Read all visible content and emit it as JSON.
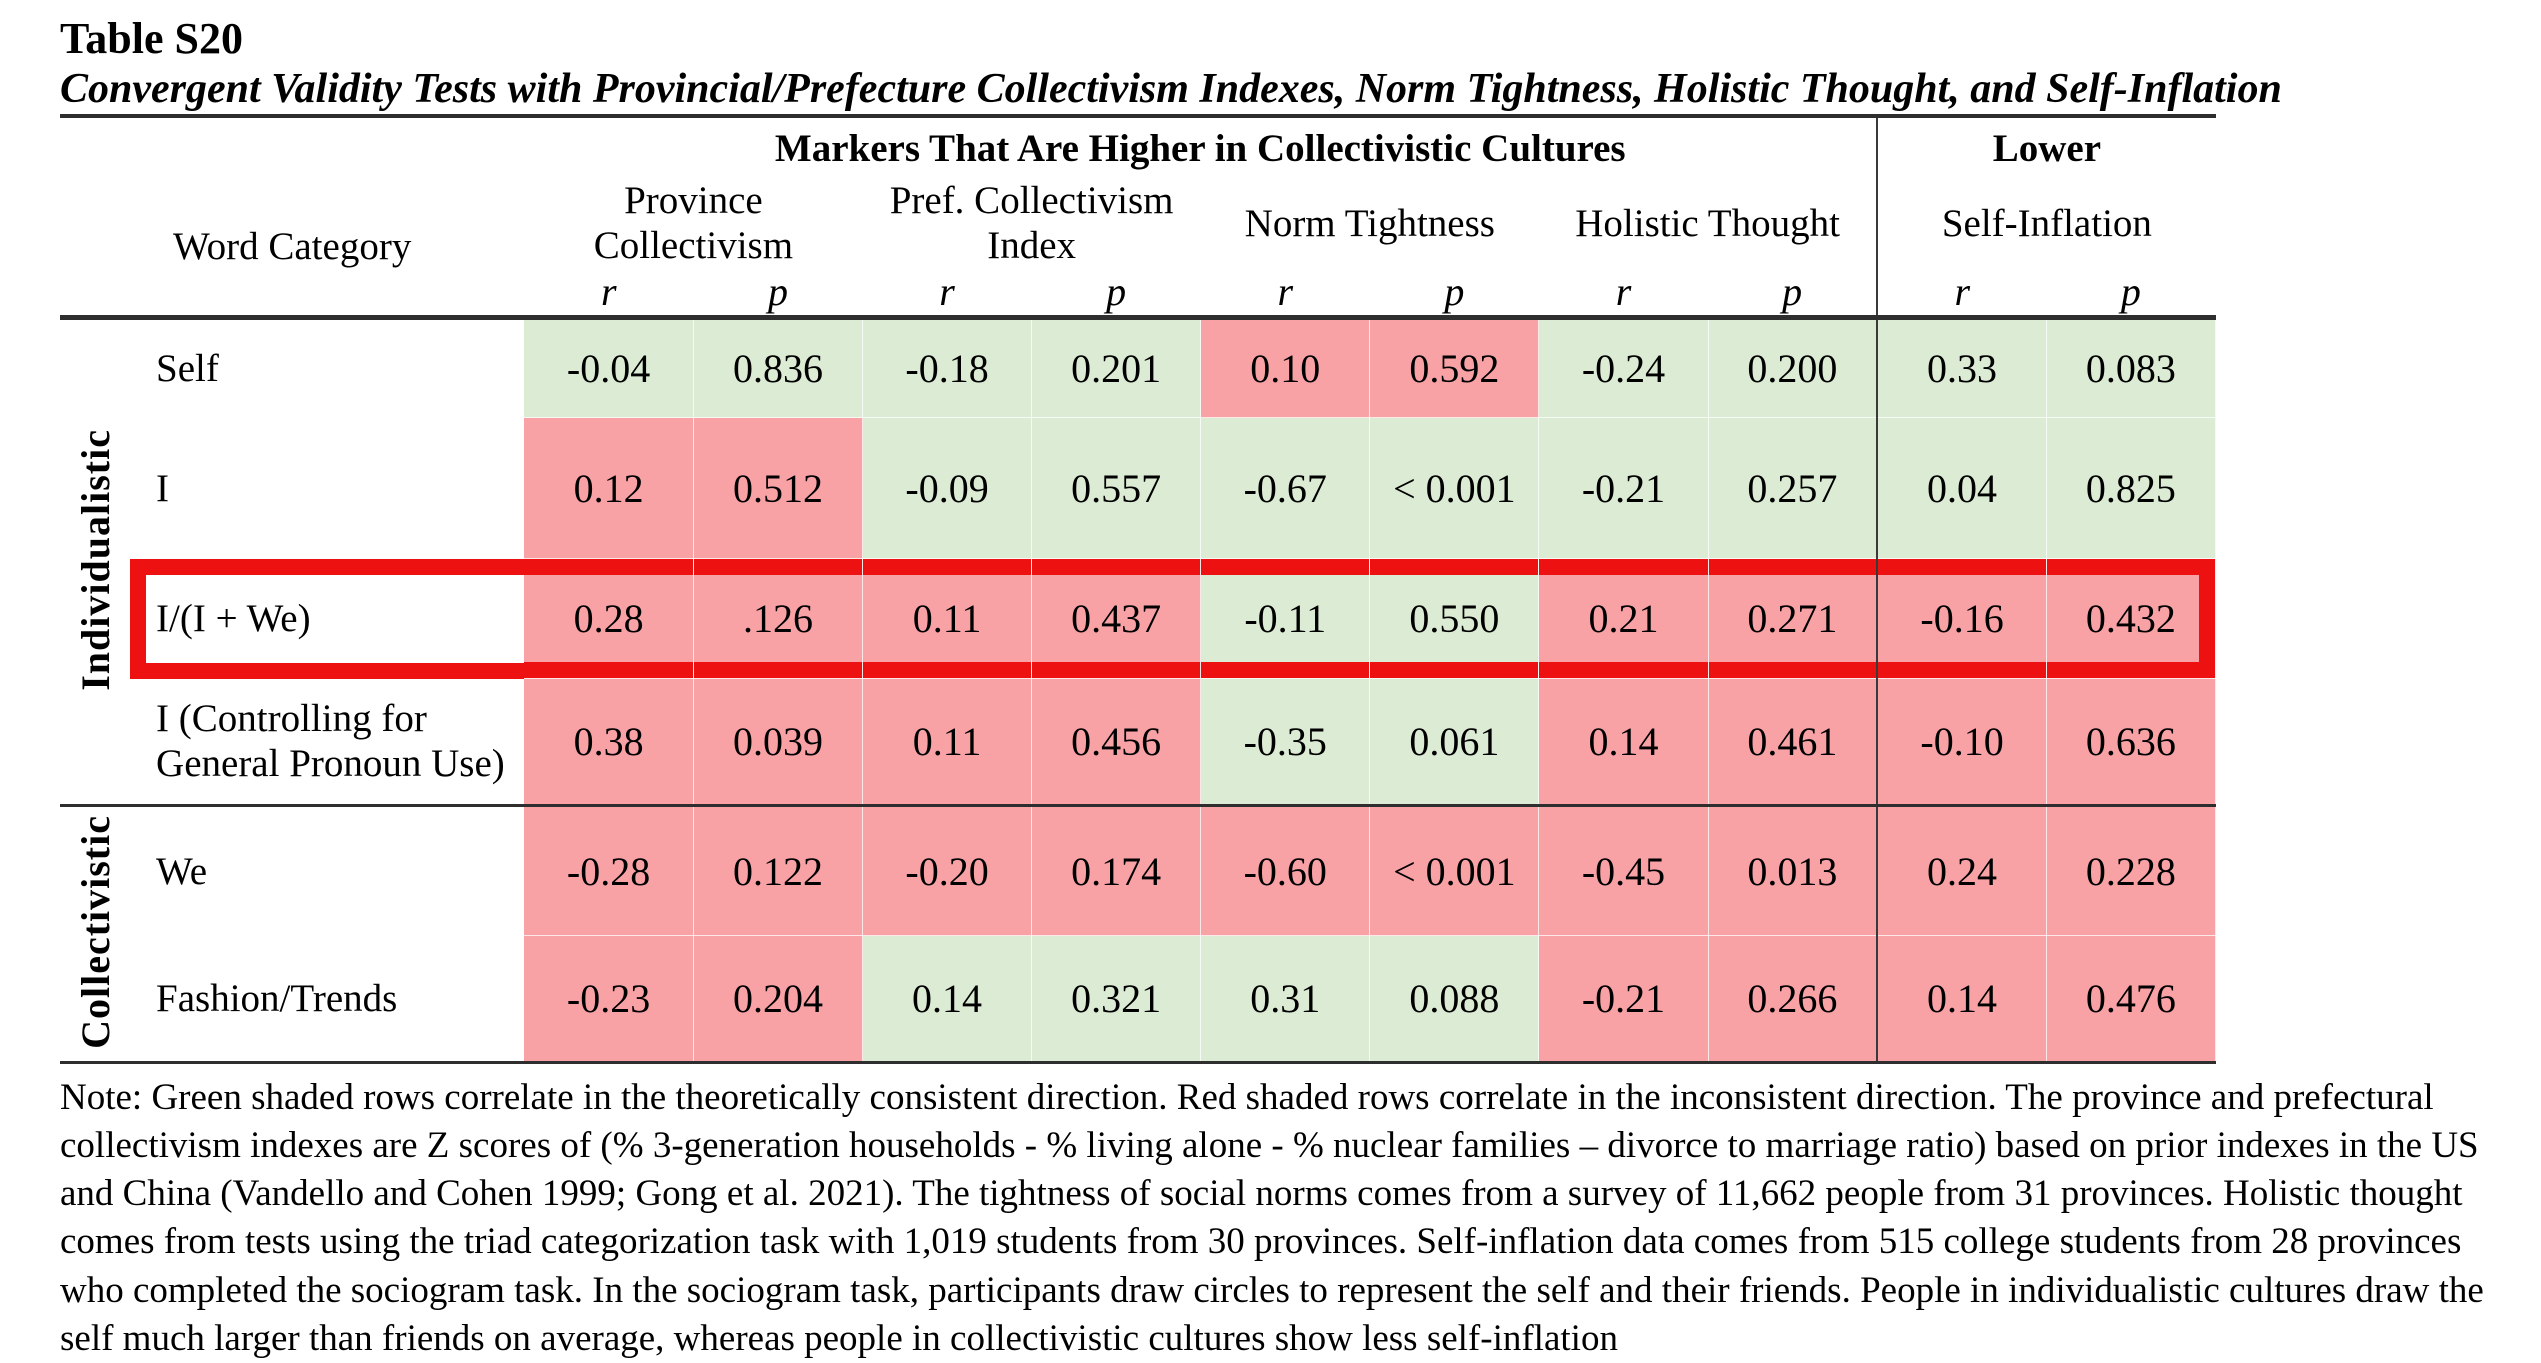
{
  "title": "Table S20",
  "subtitle": "Convergent Validity Tests with Provincial/Prefecture Collectivism Indexes, Norm Tightness, Holistic Thought, and Self-Inflation",
  "colors": {
    "green": "#dcebd3",
    "red": "#f8a2a6",
    "highlight": "#ee1111"
  },
  "table": {
    "markers_header": "Markers That Are Higher in Collectivistic Cultures",
    "lower_header": "Lower",
    "word_category_header": "Word Category",
    "measures": [
      "Province Collectivism",
      "Pref. Collectivism Index",
      "Norm Tightness",
      "Holistic Thought",
      "Self-Inflation"
    ],
    "stat_r": "r",
    "stat_p": "p",
    "groups": [
      {
        "label": "Individualistic",
        "rows": [
          {
            "category": "Self",
            "highlighted": false,
            "cells": [
              {
                "v": "-0.04",
                "c": "green"
              },
              {
                "v": "0.836",
                "c": "green"
              },
              {
                "v": "-0.18",
                "c": "green"
              },
              {
                "v": "0.201",
                "c": "green"
              },
              {
                "v": "0.10",
                "c": "red"
              },
              {
                "v": "0.592",
                "c": "red"
              },
              {
                "v": "-0.24",
                "c": "green"
              },
              {
                "v": "0.200",
                "c": "green"
              },
              {
                "v": "0.33",
                "c": "green"
              },
              {
                "v": "0.083",
                "c": "green"
              }
            ]
          },
          {
            "category": "I",
            "highlighted": false,
            "cells": [
              {
                "v": "0.12",
                "c": "red"
              },
              {
                "v": "0.512",
                "c": "red"
              },
              {
                "v": "-0.09",
                "c": "green"
              },
              {
                "v": "0.557",
                "c": "green"
              },
              {
                "v": "-0.67",
                "c": "green"
              },
              {
                "v": "< 0.001",
                "c": "green"
              },
              {
                "v": "-0.21",
                "c": "green"
              },
              {
                "v": "0.257",
                "c": "green"
              },
              {
                "v": "0.04",
                "c": "green"
              },
              {
                "v": "0.825",
                "c": "green"
              }
            ]
          },
          {
            "category": "I/(I + We)",
            "highlighted": true,
            "cells": [
              {
                "v": "0.28",
                "c": "red"
              },
              {
                "v": ".126",
                "c": "red"
              },
              {
                "v": "0.11",
                "c": "red"
              },
              {
                "v": "0.437",
                "c": "red"
              },
              {
                "v": "-0.11",
                "c": "green"
              },
              {
                "v": "0.550",
                "c": "green"
              },
              {
                "v": "0.21",
                "c": "red"
              },
              {
                "v": "0.271",
                "c": "red"
              },
              {
                "v": "-0.16",
                "c": "red"
              },
              {
                "v": "0.432",
                "c": "red"
              }
            ]
          },
          {
            "category": "I (Controlling for General Pronoun Use)",
            "highlighted": false,
            "cells": [
              {
                "v": "0.38",
                "c": "red"
              },
              {
                "v": "0.039",
                "c": "red"
              },
              {
                "v": "0.11",
                "c": "red"
              },
              {
                "v": "0.456",
                "c": "red"
              },
              {
                "v": "-0.35",
                "c": "green"
              },
              {
                "v": "0.061",
                "c": "green"
              },
              {
                "v": "0.14",
                "c": "red"
              },
              {
                "v": "0.461",
                "c": "red"
              },
              {
                "v": "-0.10",
                "c": "red"
              },
              {
                "v": "0.636",
                "c": "red"
              }
            ]
          }
        ]
      },
      {
        "label": "Collectivistic",
        "rows": [
          {
            "category": "We",
            "highlighted": false,
            "cells": [
              {
                "v": "-0.28",
                "c": "red"
              },
              {
                "v": "0.122",
                "c": "red"
              },
              {
                "v": "-0.20",
                "c": "red"
              },
              {
                "v": "0.174",
                "c": "red"
              },
              {
                "v": "-0.60",
                "c": "red"
              },
              {
                "v": "< 0.001",
                "c": "red"
              },
              {
                "v": "-0.45",
                "c": "red"
              },
              {
                "v": "0.013",
                "c": "red"
              },
              {
                "v": "0.24",
                "c": "red"
              },
              {
                "v": "0.228",
                "c": "red"
              }
            ]
          },
          {
            "category": "Fashion/Trends",
            "highlighted": false,
            "cells": [
              {
                "v": "-0.23",
                "c": "red"
              },
              {
                "v": "0.204",
                "c": "red"
              },
              {
                "v": "0.14",
                "c": "green"
              },
              {
                "v": "0.321",
                "c": "green"
              },
              {
                "v": "0.31",
                "c": "green"
              },
              {
                "v": "0.088",
                "c": "green"
              },
              {
                "v": "-0.21",
                "c": "red"
              },
              {
                "v": "0.266",
                "c": "red"
              },
              {
                "v": "0.14",
                "c": "red"
              },
              {
                "v": "0.476",
                "c": "red"
              }
            ]
          }
        ]
      }
    ]
  },
  "note": "Note: Green shaded rows correlate in the theoretically consistent direction. Red shaded rows correlate in the inconsistent direction. The province and prefectural collectivism indexes are Z scores of (% 3-generation households - % living alone - % nuclear families – divorce to marriage ratio) based on prior indexes in the US and China (Vandello and Cohen 1999; Gong et al. 2021). The tightness of social norms comes from a survey of 11,662 people from 31 provinces. Holistic thought comes from tests using the triad categorization task with 1,019 students from 30 provinces. Self-inflation data comes from 515 college students from 28 provinces who completed the sociogram task. In the sociogram task, participants draw circles to represent the self and their friends. People in individualistic cultures draw the self much larger than friends on average, whereas people in collectivistic cultures show less self-inflation"
}
